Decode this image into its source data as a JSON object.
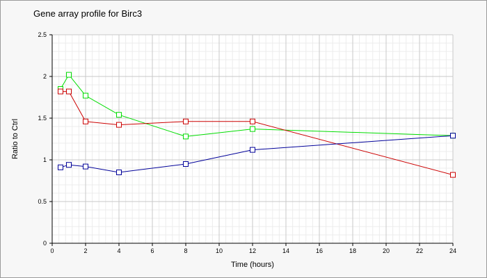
{
  "chart_data": {
    "type": "line",
    "title": "Gene array profile for Birc3",
    "xlabel": "Time (hours)",
    "ylabel": "Ratio to Ctrl",
    "xlim": [
      0,
      24
    ],
    "ylim": [
      0,
      2.5
    ],
    "x_ticks": [
      "0",
      "2",
      "4",
      "6",
      "8",
      "10",
      "12",
      "14",
      "16",
      "18",
      "20",
      "22",
      "24"
    ],
    "y_ticks": [
      "0",
      "0.5",
      "1",
      "1.5",
      "2",
      "2.5"
    ],
    "grid": true,
    "x": [
      0.5,
      1,
      2,
      4,
      8,
      12,
      24
    ],
    "series": [
      {
        "color": "#00dd00",
        "marker": "square",
        "values": [
          1.85,
          2.02,
          1.77,
          1.54,
          1.28,
          1.37,
          1.29
        ]
      },
      {
        "color": "#cc0000",
        "marker": "square",
        "values": [
          1.82,
          1.82,
          1.46,
          1.42,
          1.46,
          1.46,
          0.82
        ]
      },
      {
        "color": "#000099",
        "marker": "square",
        "values": [
          0.91,
          0.94,
          0.92,
          0.85,
          0.95,
          1.12,
          1.29
        ]
      }
    ]
  }
}
